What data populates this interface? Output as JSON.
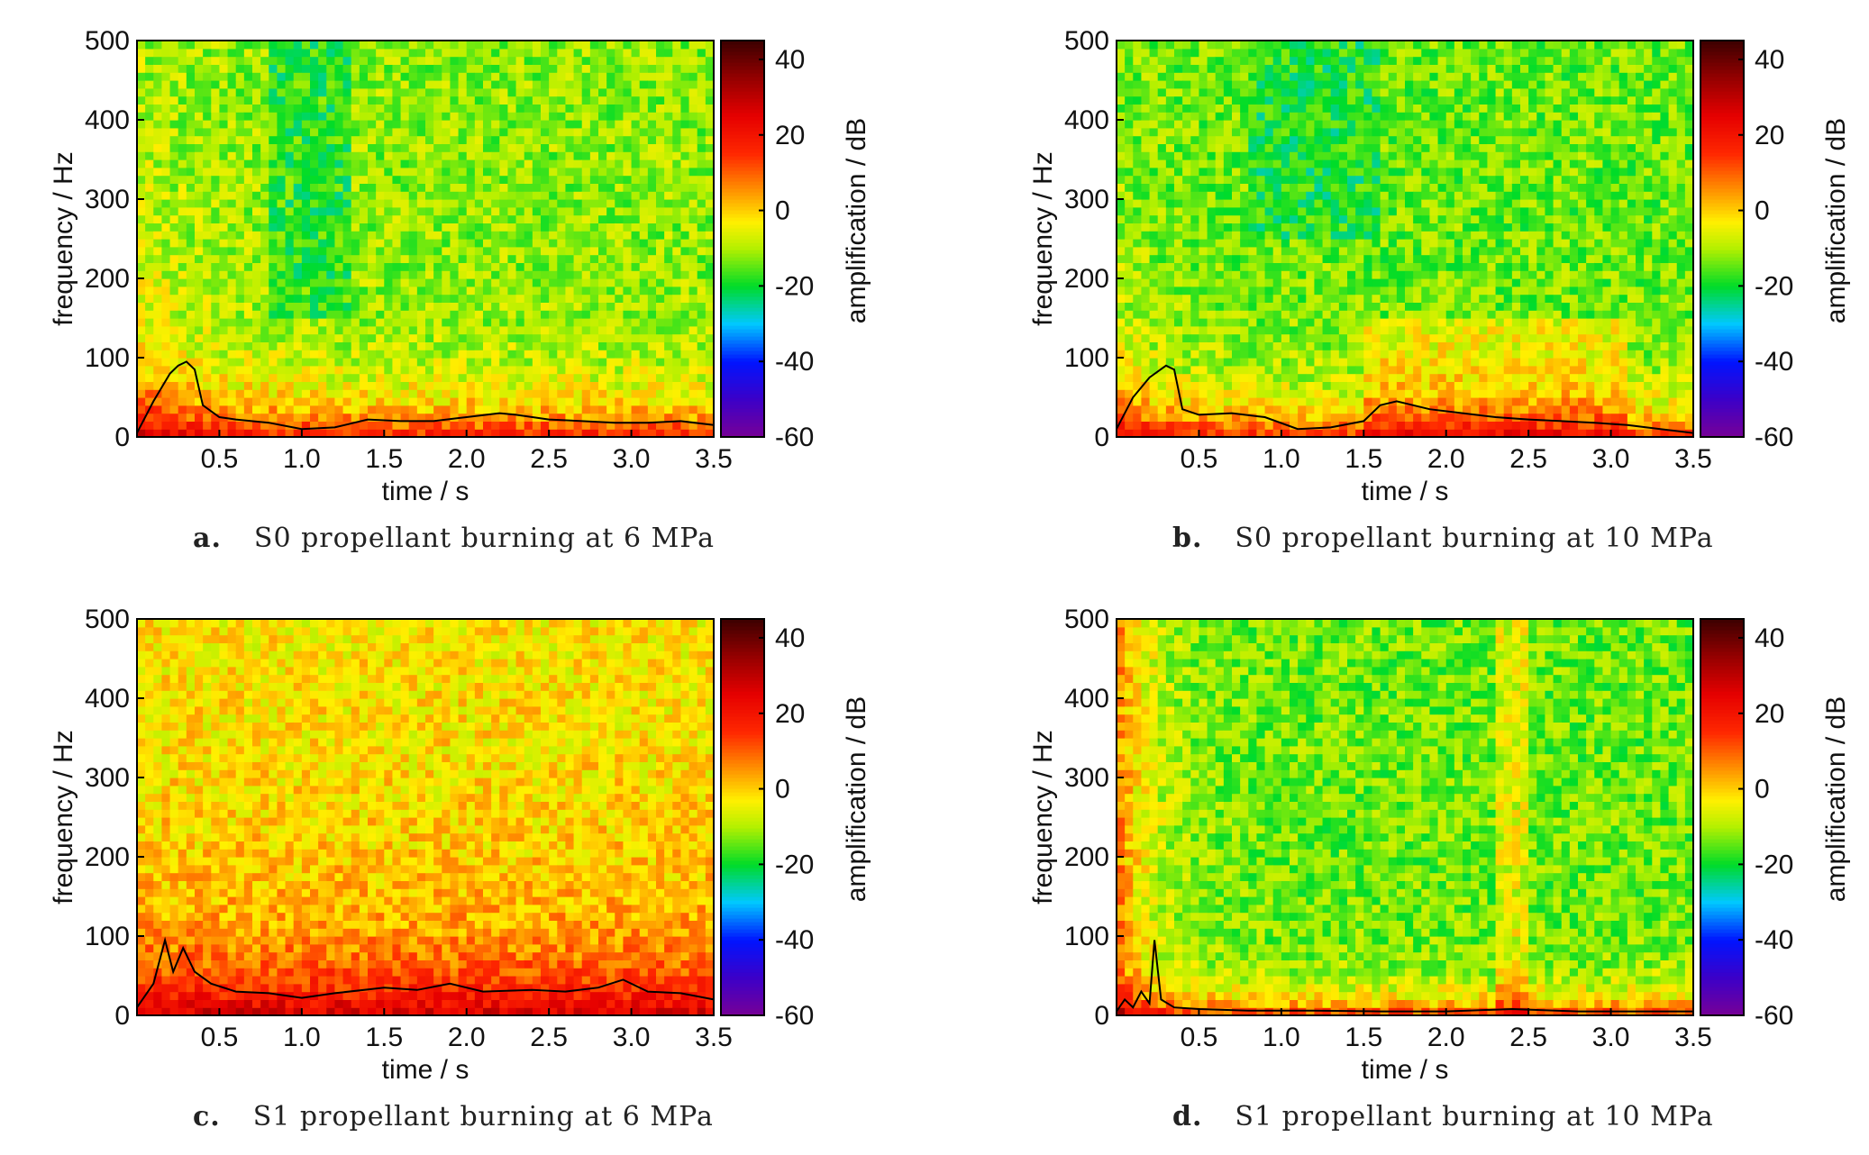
{
  "chart_data": [
    {
      "type": "heatmap",
      "panel_letter": "a.",
      "caption": "S0 propellant burning at 6 MPa",
      "xlabel": "time / s",
      "ylabel": "frequency / Hz",
      "colorbar_label": "amplification / dB",
      "xlim": [
        0,
        3.5
      ],
      "ylim": [
        0,
        500
      ],
      "zlim": [
        -60,
        45
      ],
      "xticks": [
        "0.5",
        "1.0",
        "1.5",
        "2.0",
        "2.5",
        "3.0",
        "3.5"
      ],
      "yticks": [
        "0",
        "100",
        "200",
        "300",
        "400",
        "500"
      ],
      "colorbar_ticks": [
        "40",
        "20",
        "0",
        "-20",
        "-40",
        "-60"
      ],
      "overlay_line": {
        "color": "#000000",
        "x": [
          0.0,
          0.1,
          0.2,
          0.25,
          0.3,
          0.35,
          0.4,
          0.5,
          0.6,
          0.8,
          1.0,
          1.2,
          1.4,
          1.6,
          1.8,
          2.0,
          2.2,
          2.3,
          2.5,
          2.7,
          2.9,
          3.1,
          3.3,
          3.5
        ],
        "y": [
          5,
          45,
          80,
          90,
          95,
          85,
          40,
          25,
          22,
          18,
          10,
          12,
          22,
          20,
          20,
          25,
          30,
          28,
          22,
          20,
          18,
          18,
          20,
          15
        ]
      }
    },
    {
      "type": "heatmap",
      "panel_letter": "b.",
      "caption": "S0 propellant burning at 10 MPa",
      "xlabel": "time / s",
      "ylabel": "frequency / Hz",
      "colorbar_label": "amplification / dB",
      "xlim": [
        0,
        3.5
      ],
      "ylim": [
        0,
        500
      ],
      "zlim": [
        -60,
        45
      ],
      "xticks": [
        "0.5",
        "1.0",
        "1.5",
        "2.0",
        "2.5",
        "3.0",
        "3.5"
      ],
      "yticks": [
        "0",
        "100",
        "200",
        "300",
        "400",
        "500"
      ],
      "colorbar_ticks": [
        "40",
        "20",
        "0",
        "-20",
        "-40",
        "-60"
      ],
      "overlay_line": {
        "color": "#000000",
        "x": [
          0.0,
          0.1,
          0.2,
          0.3,
          0.35,
          0.4,
          0.5,
          0.7,
          0.9,
          1.1,
          1.3,
          1.5,
          1.6,
          1.7,
          1.9,
          2.1,
          2.3,
          2.5,
          2.7,
          2.9,
          3.1,
          3.3,
          3.5
        ],
        "y": [
          10,
          50,
          75,
          90,
          85,
          35,
          28,
          30,
          25,
          10,
          12,
          20,
          40,
          45,
          35,
          30,
          25,
          22,
          20,
          18,
          15,
          10,
          5
        ]
      }
    },
    {
      "type": "heatmap",
      "panel_letter": "c.",
      "caption": "S1 propellant burning at 6 MPa",
      "xlabel": "time / s",
      "ylabel": "frequency / Hz",
      "colorbar_label": "amplification / dB",
      "xlim": [
        0,
        3.5
      ],
      "ylim": [
        0,
        500
      ],
      "zlim": [
        -60,
        45
      ],
      "xticks": [
        "0.5",
        "1.0",
        "1.5",
        "2.0",
        "2.5",
        "3.0",
        "3.5"
      ],
      "yticks": [
        "0",
        "100",
        "200",
        "300",
        "400",
        "500"
      ],
      "colorbar_ticks": [
        "40",
        "20",
        "0",
        "-20",
        "-40",
        "-60"
      ],
      "overlay_line": {
        "color": "#000000",
        "x": [
          0.0,
          0.1,
          0.17,
          0.22,
          0.28,
          0.35,
          0.45,
          0.6,
          0.8,
          1.0,
          1.2,
          1.5,
          1.7,
          1.9,
          2.1,
          2.4,
          2.6,
          2.8,
          2.95,
          3.1,
          3.3,
          3.5
        ],
        "y": [
          10,
          40,
          95,
          55,
          85,
          55,
          40,
          30,
          28,
          22,
          28,
          35,
          32,
          40,
          30,
          32,
          30,
          35,
          45,
          30,
          28,
          20
        ]
      }
    },
    {
      "type": "heatmap",
      "panel_letter": "d.",
      "caption": "S1 propellant burning at 10 MPa",
      "xlabel": "time / s",
      "ylabel": "frequency / Hz",
      "colorbar_label": "amplification / dB",
      "xlim": [
        0,
        3.5
      ],
      "ylim": [
        0,
        500
      ],
      "zlim": [
        -60,
        45
      ],
      "xticks": [
        "0.5",
        "1.0",
        "1.5",
        "2.0",
        "2.5",
        "3.0",
        "3.5"
      ],
      "yticks": [
        "0",
        "100",
        "200",
        "300",
        "400",
        "500"
      ],
      "colorbar_ticks": [
        "40",
        "20",
        "0",
        "-20",
        "-40",
        "-60"
      ],
      "overlay_line": {
        "color": "#000000",
        "x": [
          0.0,
          0.05,
          0.1,
          0.15,
          0.2,
          0.23,
          0.27,
          0.35,
          0.5,
          0.8,
          1.2,
          1.6,
          2.0,
          2.4,
          2.8,
          3.2,
          3.5
        ],
        "y": [
          5,
          20,
          10,
          30,
          15,
          95,
          20,
          10,
          8,
          6,
          6,
          5,
          5,
          8,
          5,
          5,
          5
        ]
      }
    }
  ]
}
